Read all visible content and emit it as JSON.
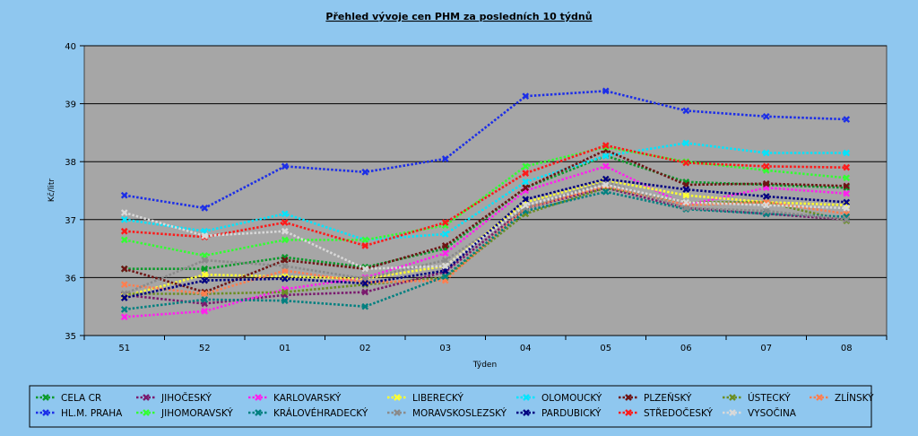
{
  "chart_data": {
    "type": "line",
    "title": "Přehled vývoje cen PHM za posledních 10 týdnů",
    "xlabel": "Týden",
    "ylabel": "Kč/litr",
    "ylim": [
      35,
      40
    ],
    "yticks": [
      35,
      36,
      37,
      38,
      39,
      40
    ],
    "categories": [
      "51",
      "52",
      "01",
      "02",
      "03",
      "04",
      "05",
      "06",
      "07",
      "08"
    ],
    "legend_position": "bottom",
    "series": [
      {
        "name": "CELA CR",
        "color": "#0a9a2a",
        "values": [
          36.15,
          36.15,
          36.35,
          36.18,
          36.5,
          37.55,
          38.1,
          37.65,
          37.6,
          37.55
        ]
      },
      {
        "name": "JIHOČESKÝ",
        "color": "#7a1a6e",
        "values": [
          35.7,
          35.55,
          35.7,
          35.75,
          36.1,
          37.2,
          37.55,
          37.2,
          37.1,
          37.0
        ]
      },
      {
        "name": "KARLOVARSKÝ",
        "color": "#ff22ee",
        "values": [
          35.32,
          35.42,
          35.8,
          36.0,
          36.42,
          37.5,
          37.92,
          37.25,
          37.55,
          37.45
        ]
      },
      {
        "name": "LIBERECKÝ",
        "color": "#ffff33",
        "values": [
          35.68,
          36.05,
          36.02,
          35.98,
          36.2,
          37.3,
          37.68,
          37.42,
          37.3,
          37.25
        ]
      },
      {
        "name": "OLOMOUCKÝ",
        "color": "#00e5ff",
        "values": [
          37.0,
          36.8,
          37.1,
          36.65,
          36.75,
          37.65,
          38.1,
          38.32,
          38.15,
          38.15
        ]
      },
      {
        "name": "PLZEŇSKÝ",
        "color": "#6e1414",
        "values": [
          36.15,
          35.75,
          36.3,
          36.15,
          36.55,
          37.55,
          38.2,
          37.6,
          37.62,
          37.58
        ]
      },
      {
        "name": "ÚSTECKÝ",
        "color": "#6b8e23",
        "values": [
          35.72,
          35.72,
          35.75,
          35.88,
          36.0,
          37.1,
          37.55,
          37.3,
          37.3,
          36.98
        ]
      },
      {
        "name": "ZLÍNSKÝ",
        "color": "#ff7f50",
        "values": [
          35.88,
          35.72,
          36.12,
          35.92,
          35.95,
          37.2,
          37.58,
          37.25,
          37.3,
          37.1
        ]
      },
      {
        "name": "HL.M. PRAHA",
        "color": "#1c2ee8",
        "values": [
          37.42,
          37.2,
          37.92,
          37.82,
          38.05,
          39.13,
          39.22,
          38.88,
          38.78,
          38.73
        ]
      },
      {
        "name": "JIHOMORAVSKÝ",
        "color": "#33ff33",
        "values": [
          36.65,
          36.38,
          36.65,
          36.65,
          36.9,
          37.92,
          38.25,
          38.0,
          37.85,
          37.72
        ]
      },
      {
        "name": "KRÁLOVÉHRADECKÝ",
        "color": "#008080",
        "values": [
          35.45,
          35.62,
          35.6,
          35.5,
          36.02,
          37.15,
          37.48,
          37.18,
          37.1,
          37.05
        ]
      },
      {
        "name": "MORAVSKOSLEZSKÝ",
        "color": "#8a8a8a",
        "values": [
          35.72,
          36.3,
          36.2,
          35.98,
          36.3,
          37.2,
          37.65,
          37.2,
          37.15,
          37.0
        ]
      },
      {
        "name": "PARDUBICKÝ",
        "color": "#000080",
        "values": [
          35.65,
          35.95,
          35.98,
          35.9,
          36.12,
          37.35,
          37.7,
          37.52,
          37.4,
          37.3
        ]
      },
      {
        "name": "STŘEDOČESKÝ",
        "color": "#ff1a1a",
        "values": [
          36.8,
          36.7,
          36.95,
          36.55,
          36.95,
          37.8,
          38.28,
          37.98,
          37.92,
          37.9
        ]
      },
      {
        "name": "VYSOČINA",
        "color": "#d9d9d9",
        "values": [
          37.12,
          36.72,
          36.8,
          36.15,
          36.2,
          37.25,
          37.6,
          37.3,
          37.25,
          37.2
        ]
      }
    ]
  }
}
